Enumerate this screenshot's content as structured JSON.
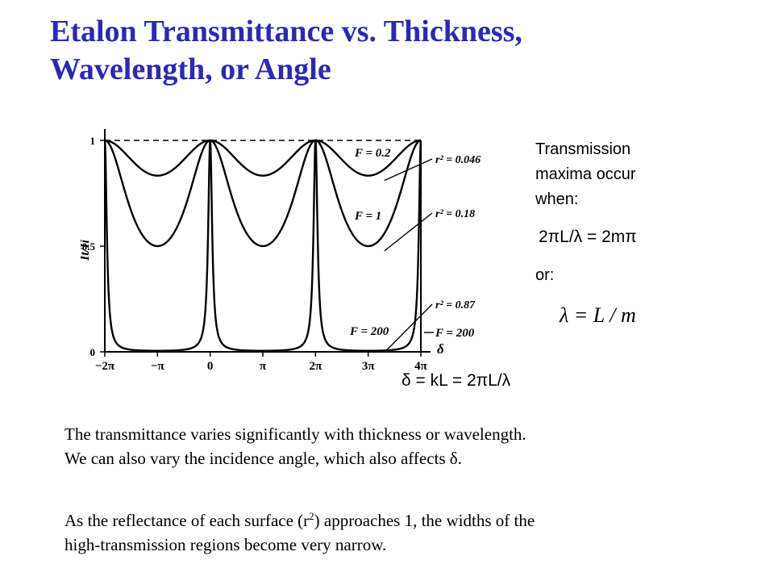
{
  "slide": {
    "title_line1": "Etalon Transmittance vs. Thickness,",
    "title_line2": "Wavelength, or Angle",
    "side": {
      "line1": "Transmission",
      "line2": "maxima occur",
      "line3": "when:",
      "equation": "2πL/λ = 2mπ",
      "or": "or:",
      "formula": "λ = L / m"
    },
    "paragraph1_line1": "The transmittance varies significantly with thickness or wavelength.",
    "paragraph1_line2": "We can also vary the incidence angle, which also affects δ.",
    "paragraph2_before": "As the reflectance of each surface (r",
    "paragraph2_sup": "2",
    "paragraph2_after": ") approaches 1, the widths of the",
    "paragraph2_line2": "high-transmission regions become very narrow.",
    "delta_definition": "δ = kL = 2πL/λ"
  },
  "chart_data": {
    "type": "line",
    "x_range": [
      -6.283,
      12.566
    ],
    "ylim": [
      0,
      1
    ],
    "ylabel": "It/Ii",
    "xlabel": "δ",
    "x_tick_labels": [
      "−2π",
      "−π",
      "0",
      "π",
      "2π",
      "3π",
      "4π"
    ],
    "y_tick_labels": [
      "0",
      "0.5",
      "1"
    ],
    "series": [
      {
        "label": "F = 0.2",
        "reflectance_label": "r² = 0.046",
        "F": 0.2
      },
      {
        "label": "F = 1",
        "reflectance_label": "r² = 0.18",
        "F": 1
      },
      {
        "label": "F = 200",
        "reflectance_label": "r² = 0.87",
        "F": 200
      }
    ],
    "extra_label": "F = 200",
    "dashed_top_line": true
  }
}
